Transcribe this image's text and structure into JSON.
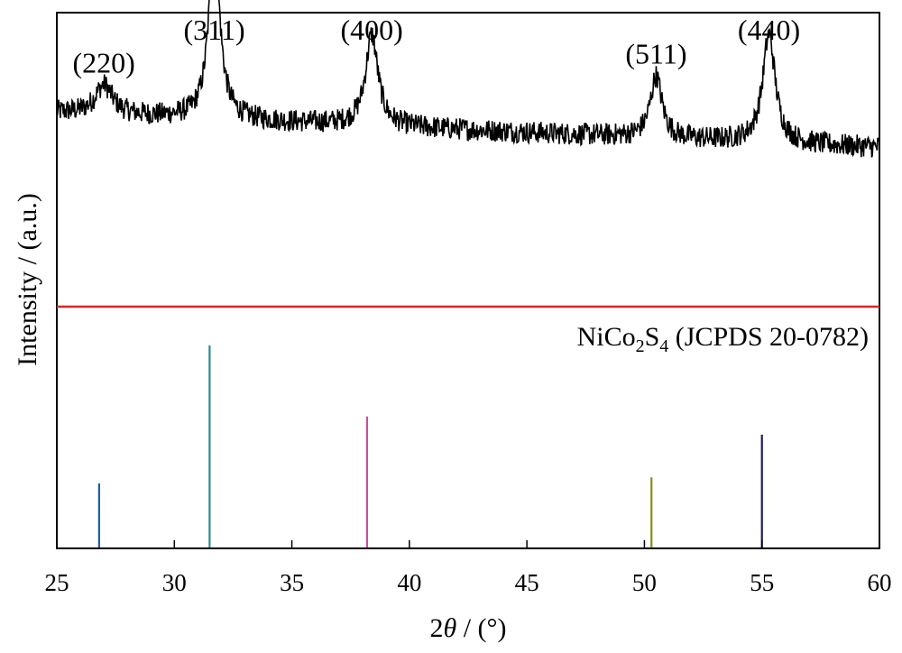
{
  "chart_data": {
    "type": "line",
    "xlabel_prefix": "2",
    "xlabel_symbol": "θ",
    "xlabel_suffix": " / (°)",
    "ylabel": "Intensity / (a.u.)",
    "xlim": [
      25,
      60
    ],
    "x_ticks": [
      "25",
      "30",
      "35",
      "40",
      "45",
      "50",
      "55",
      "60"
    ],
    "x_tick_values": [
      25,
      30,
      35,
      40,
      45,
      50,
      55,
      60
    ],
    "grid": false,
    "colors": {
      "pattern": "#000000",
      "divider": "#d62728"
    },
    "pattern": {
      "ylim": [
        0,
        10
      ],
      "baseline": 6.6,
      "slope_per_degree": -0.034,
      "noise_amplitude": 0.38,
      "peaks": [
        {
          "hkl": "(220)",
          "two_theta": 27.0,
          "height": 1.0,
          "width": 0.45
        },
        {
          "hkl": "(311)",
          "two_theta": 31.7,
          "height": 6.1,
          "width": 0.28
        },
        {
          "hkl": "(400)",
          "two_theta": 38.4,
          "height": 3.1,
          "width": 0.32
        },
        {
          "hkl": "(511)",
          "two_theta": 50.5,
          "height": 2.1,
          "width": 0.3
        },
        {
          "hkl": "(440)",
          "two_theta": 55.3,
          "height": 3.7,
          "width": 0.32
        }
      ]
    },
    "reference": {
      "label_main": "NiCo",
      "label_sub1": "2",
      "label_mid": "S",
      "label_sub2": "4",
      "label_tail": " (JCPDS 20-0782)",
      "ylim": [
        0,
        100
      ],
      "lines": [
        {
          "two_theta": 26.8,
          "intensity": 32,
          "color": "#1f5fa8"
        },
        {
          "two_theta": 31.5,
          "intensity": 100,
          "color": "#2a8c8c"
        },
        {
          "two_theta": 38.2,
          "intensity": 65,
          "color": "#c94fa0"
        },
        {
          "two_theta": 50.3,
          "intensity": 35,
          "color": "#8c8c1a"
        },
        {
          "two_theta": 55.0,
          "intensity": 56,
          "color": "#1a1a66"
        }
      ]
    }
  }
}
